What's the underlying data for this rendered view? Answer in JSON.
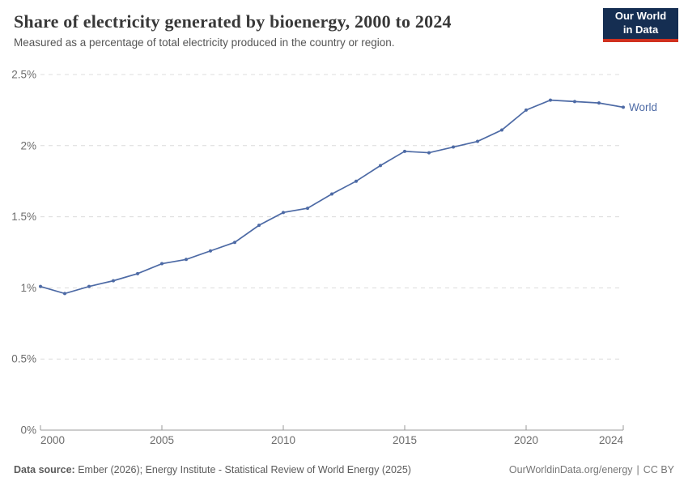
{
  "chart_data": {
    "type": "line",
    "title": "Share of electricity generated by bioenergy, 2000 to 2024",
    "subtitle": "Measured as a percentage of total electricity produced in the country or region.",
    "xlabel": "",
    "ylabel": "",
    "xlim": [
      2000,
      2024
    ],
    "ylim": [
      0,
      2.5
    ],
    "grid": "horizontal-dashed",
    "legend_position": "line-end",
    "xticks": [
      {
        "value": 2000,
        "label": "2000"
      },
      {
        "value": 2005,
        "label": "2005"
      },
      {
        "value": 2010,
        "label": "2010"
      },
      {
        "value": 2015,
        "label": "2015"
      },
      {
        "value": 2020,
        "label": "2020"
      },
      {
        "value": 2024,
        "label": "2024"
      }
    ],
    "yticks": [
      {
        "value": 0,
        "label": "0%"
      },
      {
        "value": 0.5,
        "label": "0.5%"
      },
      {
        "value": 1,
        "label": "1%"
      },
      {
        "value": 1.5,
        "label": "1.5%"
      },
      {
        "value": 2,
        "label": "2%"
      },
      {
        "value": 2.5,
        "label": "2.5%"
      }
    ],
    "series": [
      {
        "name": "World",
        "color": "#4d6aa5",
        "x": [
          2000,
          2001,
          2002,
          2003,
          2004,
          2005,
          2006,
          2007,
          2008,
          2009,
          2010,
          2011,
          2012,
          2013,
          2014,
          2015,
          2016,
          2017,
          2018,
          2019,
          2020,
          2021,
          2022,
          2023,
          2024
        ],
        "values": [
          1.01,
          0.96,
          1.01,
          1.05,
          1.1,
          1.17,
          1.2,
          1.26,
          1.32,
          1.44,
          1.53,
          1.56,
          1.66,
          1.75,
          1.86,
          1.96,
          1.95,
          1.99,
          2.03,
          2.11,
          2.25,
          2.32,
          2.31,
          2.3,
          2.27
        ]
      }
    ]
  },
  "header": {
    "logo": {
      "line1": "Our World",
      "line2": "in Data",
      "bg_color": "#152e52",
      "accent_color": "#d0311f"
    }
  },
  "footer": {
    "source_label": "Data source:",
    "source_text": " Ember (2026); Energy Institute - Statistical Review of World Energy (2025)",
    "link": "OurWorldinData.org/energy",
    "separator": "|",
    "license": "CC BY"
  }
}
